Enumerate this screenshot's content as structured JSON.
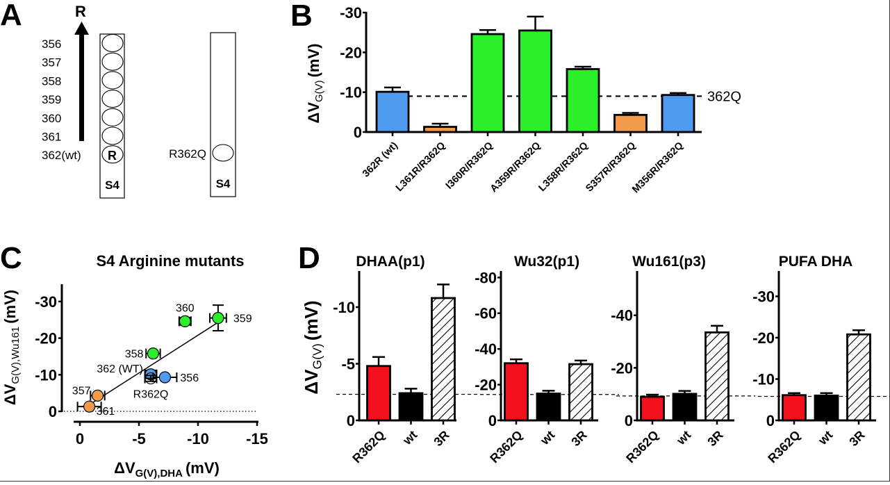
{
  "panels": {
    "A": {
      "letter": "A",
      "arrow_label": "R",
      "residues": [
        "356",
        "357",
        "358",
        "359",
        "360",
        "361",
        "362(wt)"
      ],
      "wt_circle_label": "R",
      "mutant_label": "R362Q",
      "segment_label": "S4"
    },
    "B": {
      "letter": "B"
    },
    "C": {
      "letter": "C"
    },
    "D": {
      "letter": "D"
    }
  },
  "colors": {
    "blue": "#4f9bf0",
    "orange": "#f39a4a",
    "green": "#2bef2b",
    "red": "#f2111c",
    "black": "#000000"
  },
  "chart_data": [
    {
      "id": "B",
      "type": "bar",
      "title": "",
      "ylabel_main": "ΔV",
      "ylabel_sub": "G(V)",
      "ylabel_unit": "(mV)",
      "ylim": [
        0,
        -30
      ],
      "yticks": [
        0,
        -10,
        -20,
        -30
      ],
      "ytick_labels": [
        "0",
        "-10",
        "-20",
        "-30"
      ],
      "categories": [
        "362R (wt)",
        "L361R/R362Q",
        "I360R/R362Q",
        "A359R/R362Q",
        "L358R/R362Q",
        "S357R/R362Q",
        "M356R/R362Q"
      ],
      "values": [
        -10.1,
        -1.3,
        -24.6,
        -25.5,
        -15.8,
        -4.3,
        -9.3
      ],
      "errors": [
        1.1,
        0.8,
        1.0,
        3.5,
        0.6,
        0.5,
        0.5
      ],
      "bar_colors": [
        "blue",
        "orange",
        "green",
        "green",
        "green",
        "orange",
        "blue"
      ],
      "reference_line": {
        "value": -9.0,
        "label": "362Q",
        "style": "dashed"
      }
    },
    {
      "id": "C",
      "type": "scatter",
      "title": "S4 Arginine mutants",
      "xlabel_main": "ΔV",
      "xlabel_sub": "G(V),DHA",
      "xlabel_unit": "(mV)",
      "ylabel_main": "ΔV",
      "ylabel_sub": "G(V),Wu161",
      "ylabel_unit": "(mV)",
      "xlim": [
        0,
        -15
      ],
      "ylim": [
        0,
        -30
      ],
      "xticks": [
        0,
        -5,
        -10,
        -15
      ],
      "xtick_labels": [
        "0",
        "-5",
        "-10",
        "-15"
      ],
      "yticks": [
        0,
        -10,
        -20,
        -30
      ],
      "ytick_labels": [
        "0",
        "-10",
        "-20",
        "-30"
      ],
      "zero_line": {
        "value": 0,
        "style": "dotted"
      },
      "points": [
        {
          "label": "361",
          "x": -0.8,
          "y": -1.3,
          "xerr": 1.0,
          "yerr": 0.6,
          "color": "orange",
          "filled": true
        },
        {
          "label": "357",
          "x": -1.5,
          "y": -4.3,
          "xerr": 0.6,
          "yerr": 0.5,
          "color": "orange",
          "filled": true
        },
        {
          "label": "362 (WT)",
          "x": -6.0,
          "y": -10.1,
          "xerr": 0.5,
          "yerr": 1.1,
          "color": "blue",
          "filled": true
        },
        {
          "label": "R362Q",
          "x": -6.0,
          "y": -9.0,
          "xerr": 0.5,
          "yerr": 0.8,
          "color": "black",
          "filled": false
        },
        {
          "label": "356",
          "x": -7.2,
          "y": -9.3,
          "xerr": 1.0,
          "yerr": 0.5,
          "color": "blue",
          "filled": true
        },
        {
          "label": "358",
          "x": -6.2,
          "y": -15.8,
          "xerr": 0.6,
          "yerr": 0.6,
          "color": "green",
          "filled": true
        },
        {
          "label": "360",
          "x": -8.9,
          "y": -24.6,
          "xerr": 0.5,
          "yerr": 1.0,
          "color": "green",
          "filled": true
        },
        {
          "label": "359",
          "x": -11.7,
          "y": -25.5,
          "xerr": 0.7,
          "yerr": 3.5,
          "color": "green",
          "filled": true
        }
      ],
      "fit_line": {
        "x": [
          -0.8,
          -11.7
        ],
        "y": [
          -1.8,
          -24.3
        ]
      }
    },
    {
      "id": "D1",
      "type": "bar",
      "title": "DHAA(p1)",
      "ylabel_main": "ΔV",
      "ylabel_sub": "G(V)",
      "ylabel_unit": "(mV)",
      "ylim": [
        0,
        -12.5
      ],
      "yticks": [
        0,
        -5,
        -10
      ],
      "ytick_labels": [
        "0",
        "-5",
        "-10"
      ],
      "categories": [
        "R362Q",
        "wt",
        "3R"
      ],
      "values": [
        -4.8,
        -2.4,
        -10.8
      ],
      "errors": [
        0.8,
        0.4,
        1.2
      ],
      "bar_styles": [
        "red",
        "black",
        "hatched"
      ],
      "reference_line": {
        "value": -2.3,
        "style": "dashed"
      }
    },
    {
      "id": "D2",
      "type": "bar",
      "title": "Wu32(p1)",
      "ylim": [
        0,
        -82
      ],
      "yticks": [
        0,
        -20,
        -40,
        -60,
        -80
      ],
      "ytick_labels": [
        "0",
        "-20",
        "-40",
        "-60",
        "-80"
      ],
      "categories": [
        "R362Q",
        "wt",
        "3R"
      ],
      "values": [
        -32.0,
        -15.0,
        -31.5
      ],
      "errors": [
        2.2,
        1.6,
        2.0
      ],
      "bar_styles": [
        "red",
        "black",
        "hatched"
      ],
      "reference_line": {
        "value": -14.5,
        "style": "dashed"
      }
    },
    {
      "id": "D3",
      "type": "bar",
      "title": "Wu161(p3)",
      "ylim": [
        0,
        -57
      ],
      "yticks": [
        0,
        -20,
        -40
      ],
      "ytick_labels": [
        "0",
        "-20",
        "-40"
      ],
      "categories": [
        "R362Q",
        "wt",
        "3R"
      ],
      "values": [
        -9.0,
        -10.1,
        -33.5
      ],
      "errors": [
        0.8,
        1.1,
        2.5
      ],
      "bar_styles": [
        "red",
        "black",
        "hatched"
      ],
      "reference_line": {
        "value": -9.3,
        "style": "dashed"
      }
    },
    {
      "id": "D4",
      "type": "bar",
      "title": "PUFA DHA",
      "ylim": [
        0,
        -36
      ],
      "yticks": [
        0,
        -10,
        -20,
        -30
      ],
      "ytick_labels": [
        "0",
        "-10",
        "-20",
        "-30"
      ],
      "categories": [
        "R362Q",
        "wt",
        "3R"
      ],
      "values": [
        -6.1,
        -6.0,
        -20.8
      ],
      "errors": [
        0.5,
        0.6,
        1.0
      ],
      "bar_styles": [
        "red",
        "black",
        "hatched"
      ],
      "reference_line": {
        "value": -5.8,
        "style": "dashed"
      }
    }
  ]
}
